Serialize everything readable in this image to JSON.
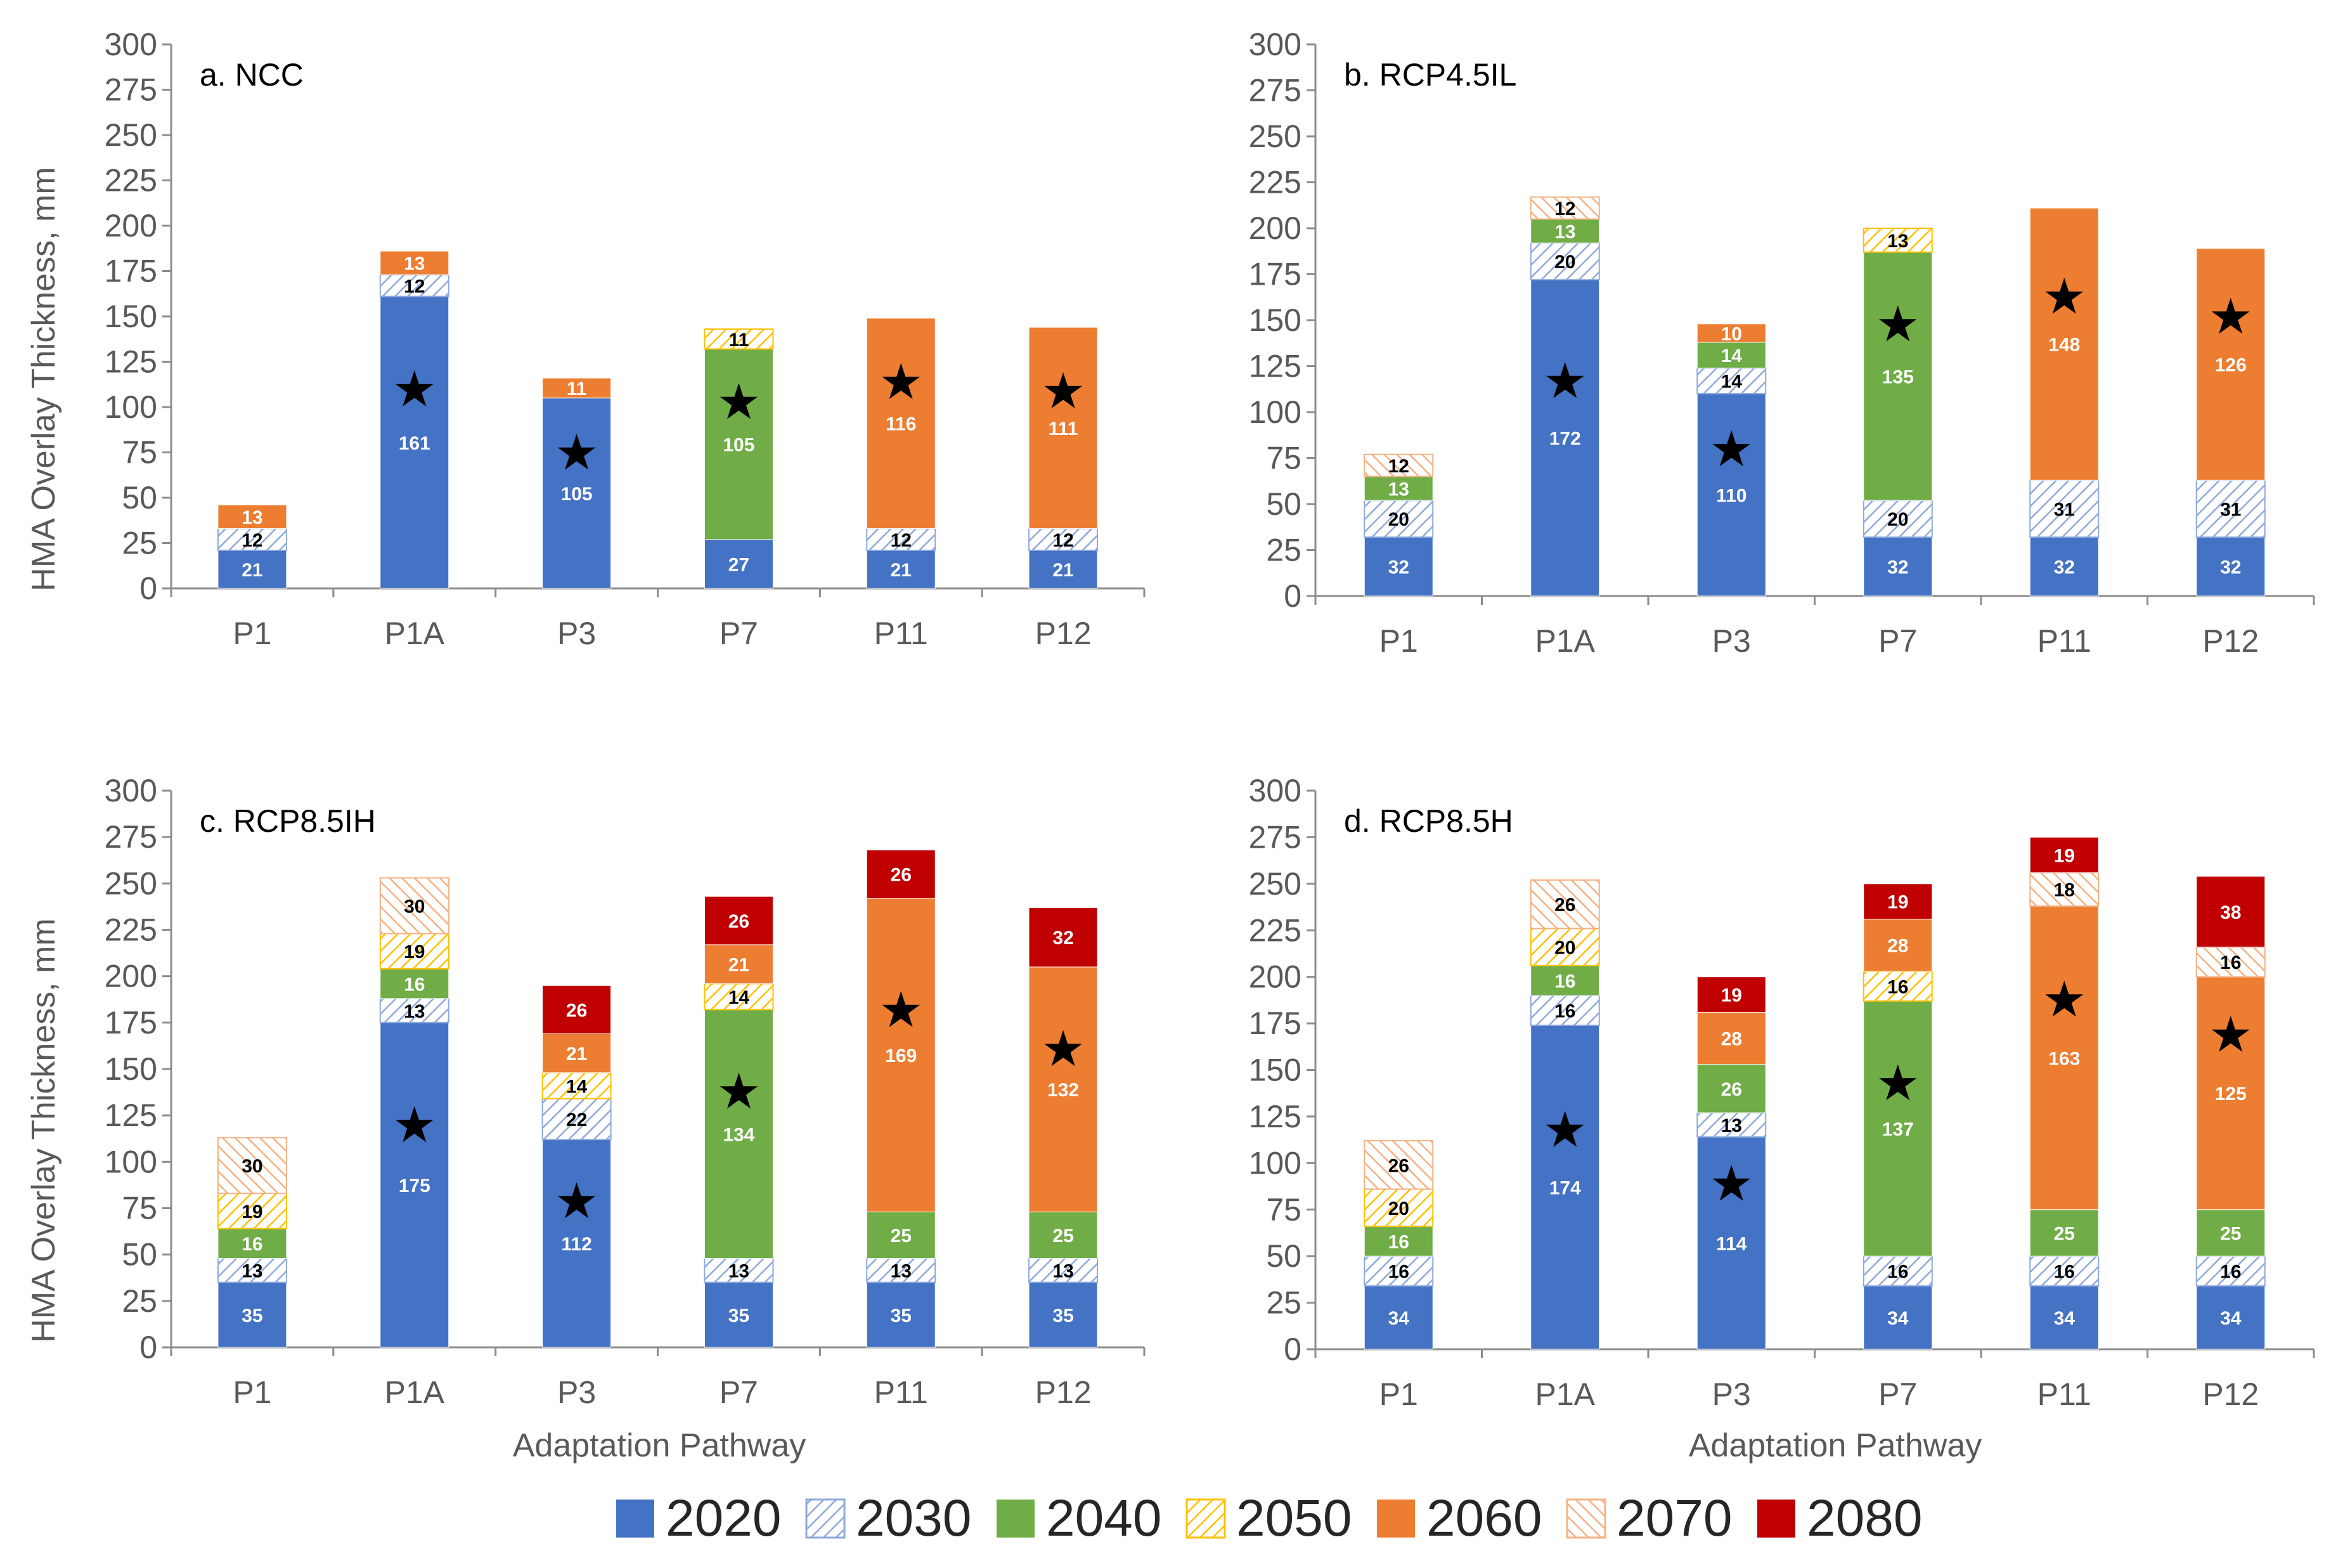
{
  "chart_data": {
    "type": "bar",
    "stacked": true,
    "ylabel": "HMA Overlay Thickness, mm",
    "xlabel": "Adaptation Pathway",
    "ylim": [
      0,
      300
    ],
    "yticks": [
      0,
      25,
      50,
      75,
      100,
      125,
      150,
      175,
      200,
      225,
      250,
      275,
      300
    ],
    "categories": [
      "P1",
      "P1A",
      "P3",
      "P7",
      "P11",
      "P12"
    ],
    "legend": [
      {
        "label": "2020",
        "color": "#4472C4",
        "pattern": "solid"
      },
      {
        "label": "2030",
        "color": "#8EA9DB",
        "pattern": "hatch"
      },
      {
        "label": "2040",
        "color": "#70AD47",
        "pattern": "solid"
      },
      {
        "label": "2050",
        "color": "#FFC000",
        "pattern": "hatch"
      },
      {
        "label": "2060",
        "color": "#ED7D31",
        "pattern": "solid"
      },
      {
        "label": "2070",
        "color": "#F4B183",
        "pattern": "hatch"
      },
      {
        "label": "2080",
        "color": "#C00000",
        "pattern": "solid"
      }
    ],
    "panels": [
      {
        "title": "a. NCC",
        "bars": [
          {
            "category": "P1",
            "star_at": null,
            "segments": [
              {
                "year": "2020",
                "value": 21
              },
              {
                "year": "2030",
                "value": 12
              },
              {
                "year": "2060",
                "value": 13
              }
            ]
          },
          {
            "category": "P1A",
            "star_at": 110,
            "segments": [
              {
                "year": "2020",
                "value": 161
              },
              {
                "year": "2030",
                "value": 12
              },
              {
                "year": "2060",
                "value": 13
              }
            ]
          },
          {
            "category": "P3",
            "star_at": 75,
            "segments": [
              {
                "year": "2020",
                "value": 105
              },
              {
                "year": "2060",
                "value": 11
              }
            ]
          },
          {
            "category": "P7",
            "star_at": 103,
            "segments": [
              {
                "year": "2020",
                "value": 27
              },
              {
                "year": "2040",
                "value": 105
              },
              {
                "year": "2050",
                "value": 11
              }
            ]
          },
          {
            "category": "P11",
            "star_at": 114,
            "segments": [
              {
                "year": "2020",
                "value": 21
              },
              {
                "year": "2030",
                "value": 12
              },
              {
                "year": "2060",
                "value": 116
              }
            ]
          },
          {
            "category": "P12",
            "star_at": 109,
            "segments": [
              {
                "year": "2020",
                "value": 21
              },
              {
                "year": "2030",
                "value": 12
              },
              {
                "year": "2060",
                "value": 111
              }
            ]
          }
        ]
      },
      {
        "title": "b. RCP4.5IL",
        "bars": [
          {
            "category": "P1",
            "star_at": null,
            "segments": [
              {
                "year": "2020",
                "value": 32
              },
              {
                "year": "2030",
                "value": 20
              },
              {
                "year": "2040",
                "value": 13
              },
              {
                "year": "2070",
                "value": 12
              }
            ]
          },
          {
            "category": "P1A",
            "star_at": 117,
            "segments": [
              {
                "year": "2020",
                "value": 172
              },
              {
                "year": "2030",
                "value": 20
              },
              {
                "year": "2040",
                "value": 13
              },
              {
                "year": "2070",
                "value": 12
              }
            ]
          },
          {
            "category": "P3",
            "star_at": 80,
            "segments": [
              {
                "year": "2020",
                "value": 110
              },
              {
                "year": "2030",
                "value": 14
              },
              {
                "year": "2040",
                "value": 14
              },
              {
                "year": "2060",
                "value": 10
              }
            ]
          },
          {
            "category": "P7",
            "star_at": 148,
            "segments": [
              {
                "year": "2020",
                "value": 32
              },
              {
                "year": "2030",
                "value": 20
              },
              {
                "year": "2040",
                "value": 135
              },
              {
                "year": "2050",
                "value": 13
              }
            ]
          },
          {
            "category": "P11",
            "star_at": 163,
            "segments": [
              {
                "year": "2020",
                "value": 32
              },
              {
                "year": "2030",
                "value": 31
              },
              {
                "year": "2060",
                "value": 148
              }
            ]
          },
          {
            "category": "P12",
            "star_at": 152,
            "segments": [
              {
                "year": "2020",
                "value": 32
              },
              {
                "year": "2030",
                "value": 31
              },
              {
                "year": "2060",
                "value": 126
              }
            ]
          }
        ]
      },
      {
        "title": "c. RCP8.5IH",
        "bars": [
          {
            "category": "P1",
            "star_at": null,
            "segments": [
              {
                "year": "2020",
                "value": 35
              },
              {
                "year": "2030",
                "value": 13
              },
              {
                "year": "2040",
                "value": 16
              },
              {
                "year": "2050",
                "value": 19
              },
              {
                "year": "2070",
                "value": 30
              }
            ]
          },
          {
            "category": "P1A",
            "star_at": 120,
            "segments": [
              {
                "year": "2020",
                "value": 175
              },
              {
                "year": "2030",
                "value": 13
              },
              {
                "year": "2040",
                "value": 16
              },
              {
                "year": "2050",
                "value": 19
              },
              {
                "year": "2070",
                "value": 30
              }
            ]
          },
          {
            "category": "P3",
            "star_at": 79,
            "segments": [
              {
                "year": "2020",
                "value": 112
              },
              {
                "year": "2030",
                "value": 22
              },
              {
                "year": "2050",
                "value": 14
              },
              {
                "year": "2060",
                "value": 21
              },
              {
                "year": "2080",
                "value": 26
              }
            ]
          },
          {
            "category": "P7",
            "star_at": 138,
            "segments": [
              {
                "year": "2020",
                "value": 35
              },
              {
                "year": "2030",
                "value": 13
              },
              {
                "year": "2040",
                "value": 134
              },
              {
                "year": "2050",
                "value": 14
              },
              {
                "year": "2060",
                "value": 21
              },
              {
                "year": "2080",
                "value": 26
              }
            ]
          },
          {
            "category": "P11",
            "star_at": 182,
            "segments": [
              {
                "year": "2020",
                "value": 35
              },
              {
                "year": "2030",
                "value": 13
              },
              {
                "year": "2040",
                "value": 25
              },
              {
                "year": "2060",
                "value": 169
              },
              {
                "year": "2080",
                "value": 26
              }
            ]
          },
          {
            "category": "P12",
            "star_at": 161,
            "segments": [
              {
                "year": "2020",
                "value": 35
              },
              {
                "year": "2030",
                "value": 13
              },
              {
                "year": "2040",
                "value": 25
              },
              {
                "year": "2060",
                "value": 132
              },
              {
                "year": "2080",
                "value": 32
              }
            ]
          }
        ]
      },
      {
        "title": "d. RCP8.5H",
        "bars": [
          {
            "category": "P1",
            "star_at": null,
            "segments": [
              {
                "year": "2020",
                "value": 34
              },
              {
                "year": "2030",
                "value": 16
              },
              {
                "year": "2040",
                "value": 16
              },
              {
                "year": "2050",
                "value": 20
              },
              {
                "year": "2070",
                "value": 26
              }
            ]
          },
          {
            "category": "P1A",
            "star_at": 118,
            "segments": [
              {
                "year": "2020",
                "value": 174
              },
              {
                "year": "2030",
                "value": 16
              },
              {
                "year": "2040",
                "value": 16
              },
              {
                "year": "2050",
                "value": 20
              },
              {
                "year": "2070",
                "value": 26
              }
            ]
          },
          {
            "category": "P3",
            "star_at": 89,
            "segments": [
              {
                "year": "2020",
                "value": 114
              },
              {
                "year": "2030",
                "value": 13
              },
              {
                "year": "2040",
                "value": 26
              },
              {
                "year": "2060",
                "value": 28
              },
              {
                "year": "2080",
                "value": 19
              }
            ]
          },
          {
            "category": "P7",
            "star_at": 143,
            "segments": [
              {
                "year": "2020",
                "value": 34
              },
              {
                "year": "2030",
                "value": 16
              },
              {
                "year": "2040",
                "value": 137
              },
              {
                "year": "2050",
                "value": 16
              },
              {
                "year": "2060",
                "value": 28
              },
              {
                "year": "2080",
                "value": 19
              }
            ]
          },
          {
            "category": "P11",
            "star_at": 188,
            "segments": [
              {
                "year": "2020",
                "value": 34
              },
              {
                "year": "2030",
                "value": 16
              },
              {
                "year": "2040",
                "value": 25
              },
              {
                "year": "2060",
                "value": 163
              },
              {
                "year": "2070",
                "value": 18
              },
              {
                "year": "2080",
                "value": 19
              }
            ]
          },
          {
            "category": "P12",
            "star_at": 169,
            "segments": [
              {
                "year": "2020",
                "value": 34
              },
              {
                "year": "2030",
                "value": 16
              },
              {
                "year": "2040",
                "value": 25
              },
              {
                "year": "2060",
                "value": 125
              },
              {
                "year": "2070",
                "value": 16
              },
              {
                "year": "2080",
                "value": 38
              }
            ]
          }
        ]
      }
    ]
  }
}
